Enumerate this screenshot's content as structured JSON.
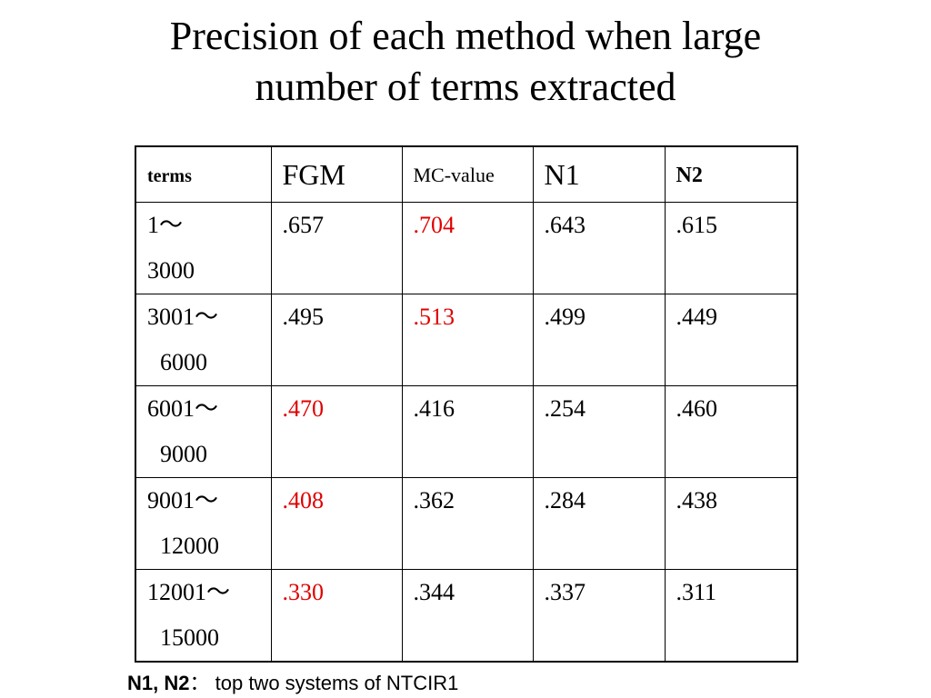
{
  "title": [
    "Precision of each method when large",
    "number of terms extracted"
  ],
  "table": {
    "header": [
      "terms",
      "FGM",
      "MC-value",
      "N1",
      "N2"
    ],
    "rows": [
      {
        "terms": [
          "1～",
          "3000"
        ],
        "cells": [
          ".657",
          ".704",
          ".643",
          ".615"
        ],
        "colors": [
          "#000000",
          "#e00000",
          "#000000",
          "#000000"
        ]
      },
      {
        "terms": [
          "3001～",
          "6000"
        ],
        "cells": [
          ".495",
          ".513",
          ".499",
          ".449"
        ],
        "colors": [
          "#000000",
          "#e00000",
          "#000000",
          "#000000"
        ]
      },
      {
        "terms": [
          "6001～",
          "9000"
        ],
        "cells": [
          ".470",
          ".416",
          ".254",
          ".460"
        ],
        "colors": [
          "#e00000",
          "#000000",
          "#000000",
          "#000000"
        ]
      },
      {
        "terms": [
          "9001～",
          "12000"
        ],
        "cells": [
          ".408",
          ".362",
          ".284",
          ".438"
        ],
        "colors": [
          "#e00000",
          "#000000",
          "#000000",
          "#000000"
        ]
      },
      {
        "terms": [
          "12001～",
          "15000"
        ],
        "cells": [
          ".330",
          ".344",
          ".337",
          ".311"
        ],
        "colors": [
          "#e00000",
          "#000000",
          "#000000",
          "#000000"
        ]
      }
    ]
  },
  "footnote": {
    "label": "N1, N2",
    "separator": "：",
    "text": "top two systems of NTCIR1"
  }
}
